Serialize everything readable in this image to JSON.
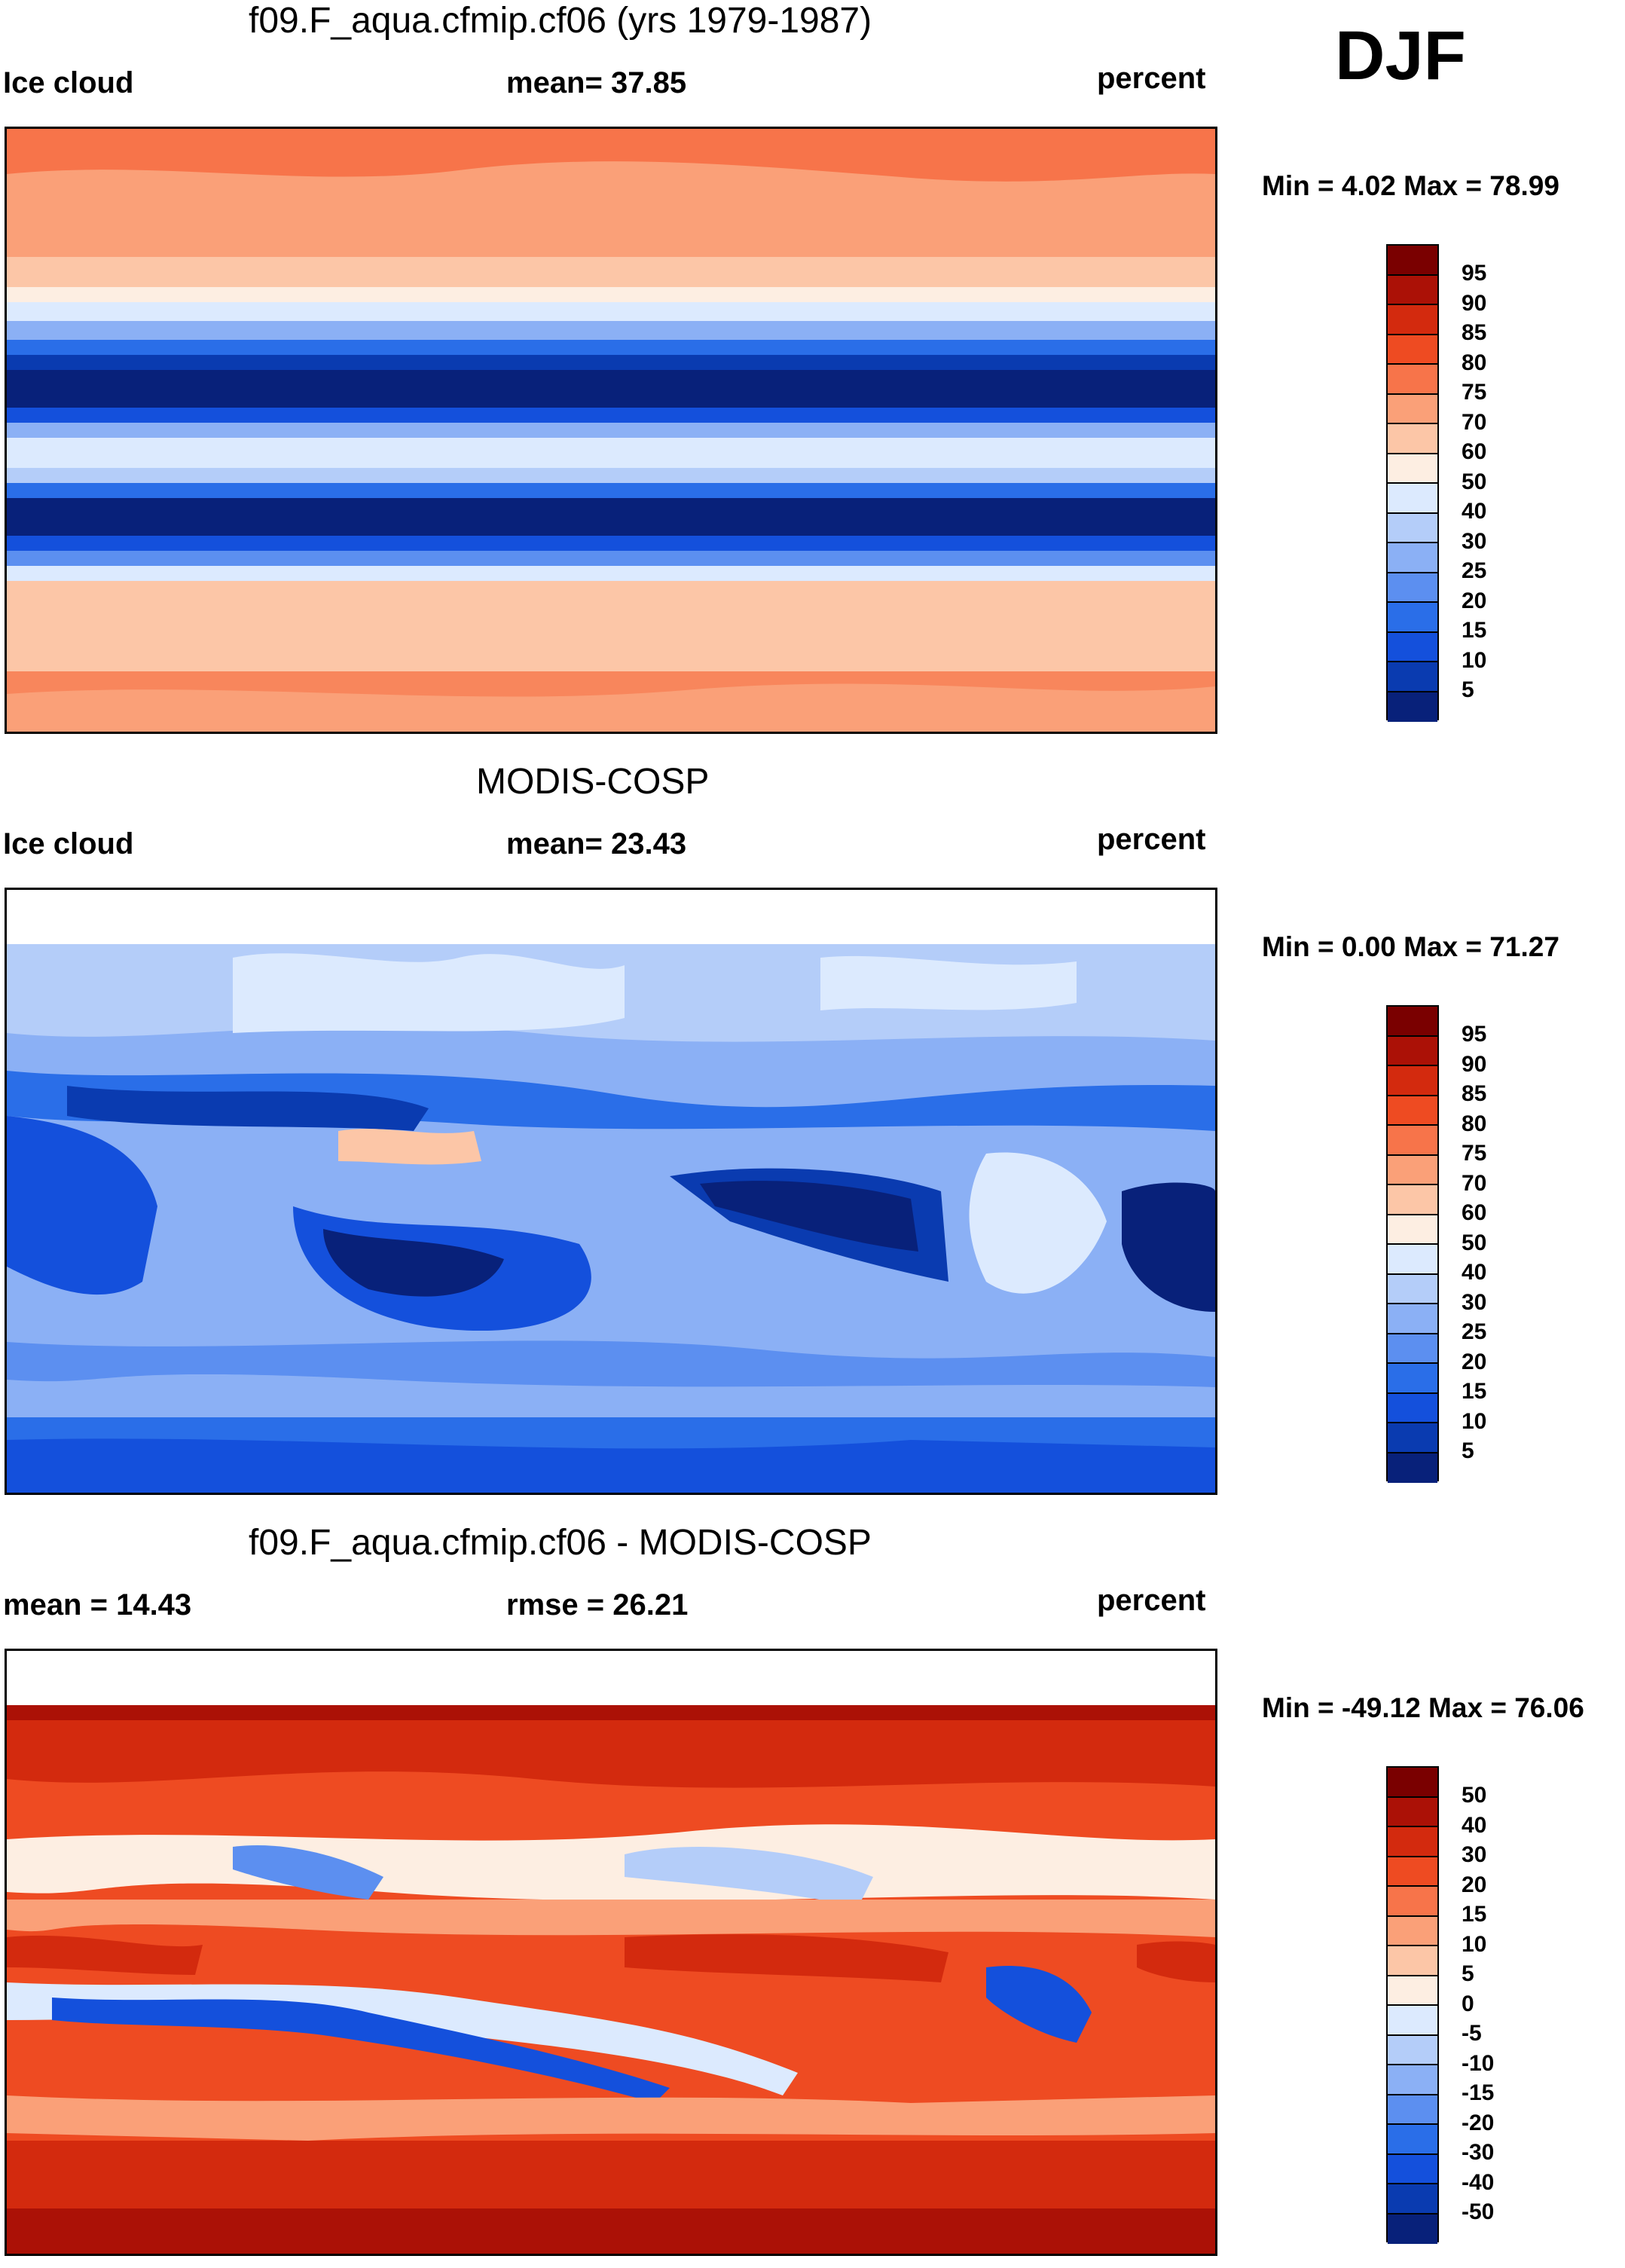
{
  "season": "DJF",
  "colors": {
    "seq": [
      "#08217a",
      "#0a3bb0",
      "#1450dc",
      "#2a6ee8",
      "#5c8ff0",
      "#8bb0f5",
      "#b4cdf9",
      "#dceafe",
      "#fdeee2",
      "#fcc6a7",
      "#faa078",
      "#f7744a",
      "#ee4b22",
      "#d32a0e",
      "#ab1106",
      "#7a0000"
    ],
    "diff": [
      "#08217a",
      "#0a3bb0",
      "#1450dc",
      "#2a6ee8",
      "#5c8ff0",
      "#8bb0f5",
      "#b4cdf9",
      "#dceafe",
      "#fdeee2",
      "#fcc6a7",
      "#faa078",
      "#f7744a",
      "#ee4b22",
      "#d32a0e",
      "#ab1106",
      "#7a0000"
    ]
  },
  "panels": [
    {
      "title": "f09.F_aqua.cfmip.cf06 (yrs 1979-1987)",
      "left_label": "Ice cloud",
      "center_label": "mean=  37.85",
      "units": "percent",
      "min_max": "Min =   4.02 Max =  78.99",
      "colorbar_ticks": [
        "95",
        "90",
        "85",
        "80",
        "75",
        "70",
        "60",
        "50",
        "40",
        "30",
        "25",
        "20",
        "15",
        "10",
        "5"
      ],
      "map_description": "zonal"
    },
    {
      "title": "MODIS-COSP",
      "left_label": "Ice cloud",
      "center_label": "mean=  23.43",
      "units": "percent",
      "min_max": "Min =   0.00 Max =  71.27",
      "colorbar_ticks": [
        "95",
        "90",
        "85",
        "80",
        "75",
        "70",
        "60",
        "50",
        "40",
        "30",
        "25",
        "20",
        "15",
        "10",
        "5"
      ],
      "map_description": "obs"
    },
    {
      "title": "f09.F_aqua.cfmip.cf06 - MODIS-COSP",
      "left_label": "mean =  14.43",
      "center_label": "rmse =  26.21",
      "units": "percent",
      "min_max": "Min = -49.12 Max =  76.06",
      "colorbar_ticks": [
        "50",
        "40",
        "30",
        "20",
        "15",
        "10",
        "5",
        "0",
        "-5",
        "-10",
        "-15",
        "-20",
        "-30",
        "-40",
        "-50"
      ],
      "map_description": "diff"
    }
  ]
}
